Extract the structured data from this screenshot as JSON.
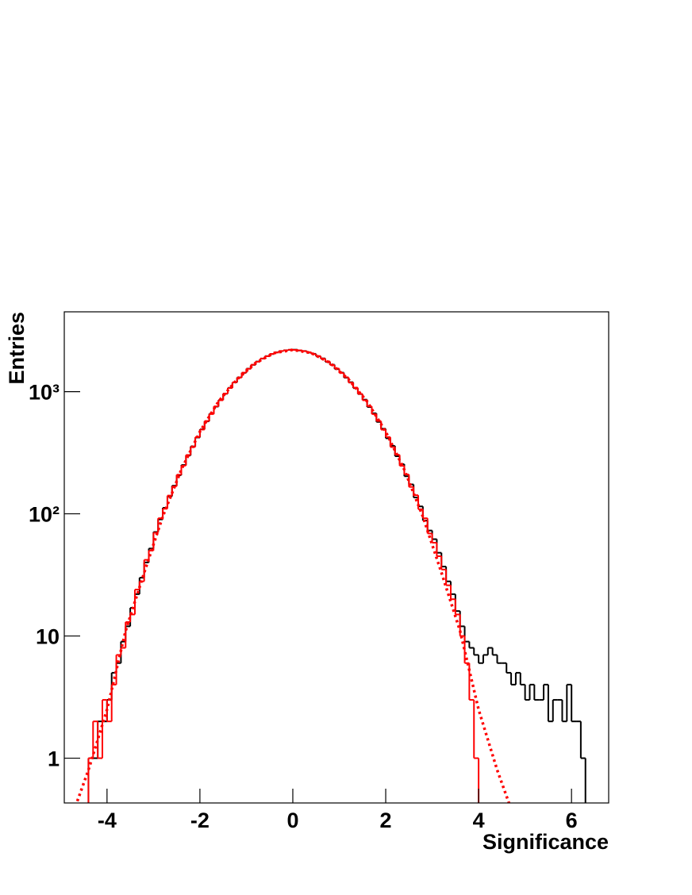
{
  "chart_data": {
    "type": "histogram",
    "x_label": "Significance",
    "y_label": "Entries",
    "bins": [
      -4.9,
      -4.8,
      -4.7,
      -4.6,
      -4.5,
      -4.4,
      -4.3,
      -4.2,
      -4.1,
      -4.0,
      -3.9,
      -3.8,
      -3.7,
      -3.6,
      -3.5,
      -3.4,
      -3.3,
      -3.2,
      -3.1,
      -3.0,
      -2.9,
      -2.8,
      -2.7,
      -2.6,
      -2.5,
      -2.4,
      -2.3,
      -2.2,
      -2.1,
      -2.0,
      -1.9,
      -1.8,
      -1.7,
      -1.6,
      -1.5,
      -1.4,
      -1.3,
      -1.2,
      -1.1,
      -1.0,
      -0.9,
      -0.8,
      -0.7,
      -0.6,
      -0.5,
      -0.4,
      -0.3,
      -0.2,
      -0.1,
      0,
      0.1,
      0.2,
      0.3,
      0.4,
      0.5,
      0.6,
      0.7,
      0.8,
      0.9,
      1.0,
      1.1,
      1.2,
      1.3,
      1.4,
      1.5,
      1.6,
      1.7,
      1.8,
      1.9,
      2.0,
      2.1,
      2.2,
      2.3,
      2.4,
      2.5,
      2.6,
      2.7,
      2.8,
      2.9,
      3.0,
      3.1,
      3.2,
      3.3,
      3.4,
      3.5,
      3.6,
      3.7,
      3.8,
      3.9,
      4.0,
      4.1,
      4.2,
      4.3,
      4.4,
      4.5,
      4.6,
      4.7,
      4.8,
      4.9,
      5.0,
      5.1,
      5.2,
      5.3,
      5.4,
      5.5,
      5.6,
      5.7,
      5.8,
      5.9,
      6.0,
      6.1,
      6.2,
      6.3,
      6.4,
      6.5,
      6.6,
      6.7,
      6.8
    ],
    "series": [
      {
        "color": "#000000",
        "values": [
          0,
          0,
          0,
          0,
          0,
          1,
          1,
          2,
          2,
          3,
          5,
          6,
          9,
          12,
          17,
          22,
          30,
          40,
          52,
          71,
          90,
          112,
          139,
          170,
          207,
          251,
          300,
          356,
          421,
          492,
          571,
          659,
          754,
          854,
          961,
          1074,
          1189,
          1307,
          1425,
          1542,
          1656,
          1763,
          1863,
          1953,
          2031,
          2096,
          2147,
          2181,
          2198,
          2205,
          2170,
          2150,
          2088,
          2040,
          1945,
          1870,
          1750,
          1662,
          1530,
          1431,
          1300,
          1195,
          1068,
          955,
          860,
          748,
          665,
          565,
          497,
          415,
          360,
          296,
          255,
          203,
          174,
          136,
          115,
          88,
          73,
          62,
          48,
          37,
          28,
          22,
          16,
          12,
          9,
          8,
          7,
          6,
          7,
          8,
          7,
          6,
          6,
          5,
          4,
          5,
          4,
          3,
          4,
          3,
          3,
          4,
          2,
          3,
          3,
          2,
          4,
          2,
          2,
          1,
          0,
          0,
          0,
          0,
          0
        ]
      },
      {
        "color": "#ff0000",
        "values": [
          0,
          0,
          0,
          0,
          0,
          1,
          2,
          1,
          3,
          2,
          4,
          7,
          8,
          13,
          15,
          24,
          28,
          42,
          50,
          70,
          92,
          110,
          141,
          168,
          209,
          248,
          303,
          352,
          425,
          489,
          575,
          655,
          758,
          850,
          965,
          1070,
          1193,
          1302,
          1430,
          1538,
          1660,
          1758,
          1868,
          1950,
          2035,
          2090,
          2152,
          2176,
          2202,
          2195,
          2178,
          2143,
          2100,
          2027,
          1957,
          1858,
          1768,
          1651,
          1546,
          1420,
          1311,
          1185,
          1078,
          958,
          850,
          758,
          655,
          575,
          488,
          425,
          352,
          304,
          247,
          210,
          166,
          142,
          109,
          92,
          69,
          58,
          45,
          35,
          26,
          20,
          15,
          10,
          6,
          3,
          1,
          0,
          0,
          0,
          0,
          0,
          0,
          0,
          0,
          0,
          0,
          0,
          0,
          0,
          0,
          0,
          0,
          0,
          0,
          0,
          0,
          0,
          0,
          0,
          0,
          0,
          0,
          0,
          0
        ]
      }
    ],
    "fit": {
      "color": "#ff0000",
      "style": "dotted",
      "x": [
        -4.8,
        -4.4,
        -4.0,
        -3.6,
        -3.2,
        -2.8,
        -2.4,
        -2.0,
        -1.6,
        -1.2,
        -0.8,
        -0.4,
        0,
        0.4,
        0.8,
        1.2,
        1.6,
        2.0,
        2.4,
        2.8,
        3.2,
        3.6,
        4.0,
        4.4,
        4.8
      ],
      "values": [
        0.3,
        0.8,
        2.5,
        11,
        33,
        95,
        230,
        470,
        830,
        1260,
        1720,
        2070,
        2200,
        2070,
        1720,
        1260,
        830,
        470,
        230,
        95,
        33,
        11,
        2.5,
        0.8,
        0.3
      ]
    },
    "xlim": [
      -4.92,
      6.8
    ],
    "xticks": [
      -4,
      -2,
      0,
      2,
      4,
      6
    ],
    "ylim": [
      0.43,
      4500
    ],
    "log_y": true,
    "yticks": [
      1,
      10,
      {
        "value": 100,
        "label": "10²"
      },
      {
        "value": 1000,
        "label": "10³"
      }
    ]
  }
}
